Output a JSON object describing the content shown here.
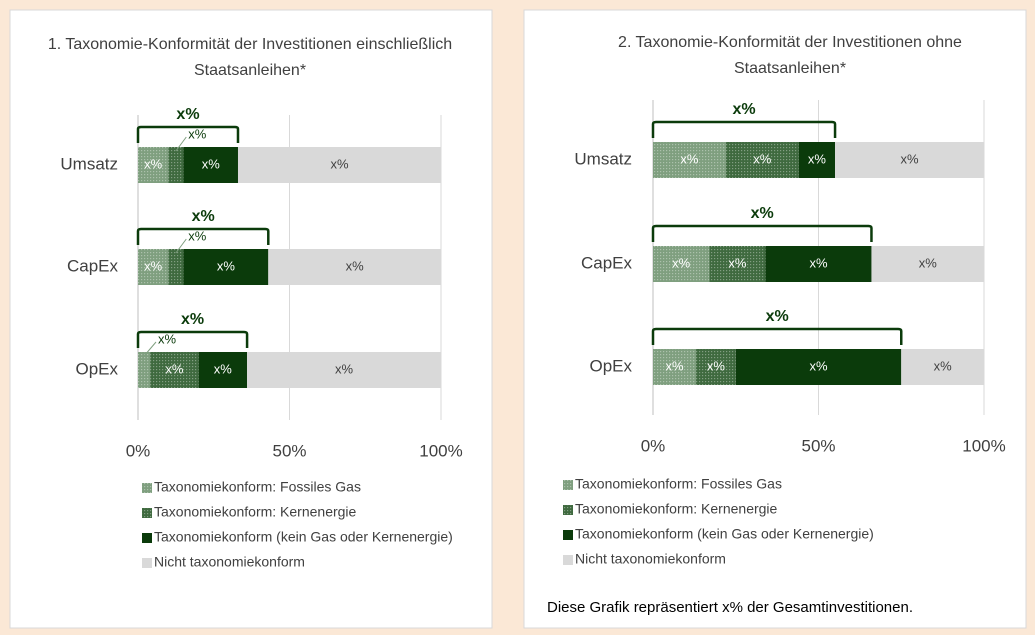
{
  "chart_data": [
    {
      "type": "bar",
      "orientation": "horizontal",
      "stacked": true,
      "title": "1. Taxonomie-Konformität der Investitionen einschließlich Staatsanleihen*",
      "categories": [
        "Umsatz",
        "CapEx",
        "OpEx"
      ],
      "series": [
        {
          "name": "Taxonomiekonform: Fossiles Gas",
          "color": "#7f9f7f",
          "textured": true,
          "values": [
            10,
            10,
            4
          ],
          "value_labels": [
            "x%",
            "x%",
            "x%"
          ]
        },
        {
          "name": "Taxonomiekonform: Kernenergie",
          "color": "#3f6a3f",
          "textured": true,
          "values": [
            5,
            5,
            16
          ],
          "value_labels": [
            "x%",
            "x%",
            "x%"
          ]
        },
        {
          "name": "Taxonomiekonform (kein Gas oder Kernenergie)",
          "color": "#0b3b0b",
          "values": [
            18,
            28,
            16
          ],
          "value_labels": [
            "x%",
            "x%",
            "x%"
          ]
        },
        {
          "name": "Nicht taxonomiekonform",
          "color": "#d9d9d9",
          "values": [
            67,
            57,
            64
          ],
          "value_labels": [
            "x%",
            "x%",
            "x%"
          ]
        }
      ],
      "bracket_labels": [
        "x%",
        "x%",
        "x%"
      ],
      "xlim": [
        0,
        100
      ],
      "xticks": [
        {
          "value": 0,
          "label": "0%"
        },
        {
          "value": 50,
          "label": "50%"
        },
        {
          "value": 100,
          "label": "100%"
        }
      ],
      "grid": true,
      "legend": "bottom"
    },
    {
      "type": "bar",
      "orientation": "horizontal",
      "stacked": true,
      "title": "2. Taxonomie-Konformität der Investitionen ohne Staatsanleihen*",
      "categories": [
        "Umsatz",
        "CapEx",
        "OpEx"
      ],
      "series": [
        {
          "name": "Taxonomiekonform: Fossiles Gas",
          "color": "#7f9f7f",
          "textured": true,
          "values": [
            22,
            17,
            13
          ],
          "value_labels": [
            "x%",
            "x%",
            "x%"
          ]
        },
        {
          "name": "Taxonomiekonform: Kernenergie",
          "color": "#3f6a3f",
          "textured": true,
          "values": [
            22,
            17,
            12
          ],
          "value_labels": [
            "x%",
            "x%",
            "x%"
          ]
        },
        {
          "name": "Taxonomiekonform (kein Gas oder Kernenergie)",
          "color": "#0b3b0b",
          "values": [
            11,
            32,
            50
          ],
          "value_labels": [
            "x%",
            "x%",
            "x%"
          ]
        },
        {
          "name": "Nicht taxonomiekonform",
          "color": "#d9d9d9",
          "values": [
            45,
            34,
            25
          ],
          "value_labels": [
            "x%",
            "x%",
            "x%"
          ]
        }
      ],
      "bracket_labels": [
        "x%",
        "x%",
        "x%"
      ],
      "xlim": [
        0,
        100
      ],
      "xticks": [
        {
          "value": 0,
          "label": "0%"
        },
        {
          "value": 50,
          "label": "50%"
        },
        {
          "value": 100,
          "label": "100%"
        }
      ],
      "grid": true,
      "legend": "bottom",
      "footnote": "Diese Grafik repräsentiert x% der Gesamtinvestitionen."
    }
  ]
}
